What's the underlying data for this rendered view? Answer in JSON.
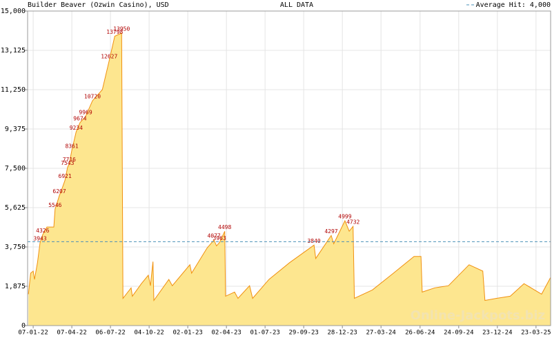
{
  "chart_data": {
    "type": "area",
    "title": "Builder Beaver (Ozwin Casino), USD",
    "subtitle": "ALL DATA",
    "watermark": "Online-Jackpots.biz",
    "average": {
      "label": "Average Hit: 4,000",
      "value": 4000,
      "color": "#4a90b8"
    },
    "color": "#f0900f",
    "fill": "#fde68f",
    "label_color": "#b00000",
    "grid": true,
    "xlim": [
      "2021-12-25",
      "2025-04-26"
    ],
    "xticks": [
      {
        "value": "2022-01-07",
        "label": "07-01-22"
      },
      {
        "value": "2022-04-07",
        "label": "07-04-22"
      },
      {
        "value": "2022-07-06",
        "label": "06-07-22"
      },
      {
        "value": "2022-10-04",
        "label": "04-10-22"
      },
      {
        "value": "2023-01-02",
        "label": "02-01-23"
      },
      {
        "value": "2023-04-02",
        "label": "02-04-23"
      },
      {
        "value": "2023-07-01",
        "label": "01-07-23"
      },
      {
        "value": "2023-09-29",
        "label": "29-09-23"
      },
      {
        "value": "2023-12-28",
        "label": "28-12-23"
      },
      {
        "value": "2024-03-27",
        "label": "27-03-24"
      },
      {
        "value": "2024-06-26",
        "label": "26-06-24"
      },
      {
        "value": "2024-09-24",
        "label": "24-09-24"
      },
      {
        "value": "2024-12-23",
        "label": "23-12-24"
      },
      {
        "value": "2025-03-23",
        "label": "23-03-25"
      }
    ],
    "ylim": [
      0,
      15000
    ],
    "yticks": [
      0,
      {
        "value": 1875,
        "label": "1,875"
      },
      {
        "value": 3750,
        "label": "3,750"
      },
      {
        "value": 5625,
        "label": "5,625"
      },
      {
        "value": 7500,
        "label": "7,500"
      },
      {
        "value": 9375,
        "label": "9,375"
      },
      {
        "value": 11250,
        "label": "11,250"
      },
      {
        "value": 13125,
        "label": "13,125"
      },
      {
        "value": 15000,
        "label": "15,000"
      }
    ],
    "x": [
      "2021-12-27",
      "2022-01-01",
      "2022-01-07",
      "2022-01-10",
      "2022-01-17",
      "2022-01-23",
      "2022-01-29",
      "2022-02-08",
      "2022-02-24",
      "2022-02-27",
      "2022-03-09",
      "2022-03-12",
      "2022-03-22",
      "2022-03-28",
      "2022-04-01",
      "2022-04-07",
      "2022-04-17",
      "2022-04-26",
      "2022-05-09",
      "2022-05-25",
      "2022-06-17",
      "2022-07-03",
      "2022-07-16",
      "2022-08-01",
      "2022-08-04",
      "2022-08-23",
      "2022-08-26",
      "2022-09-16",
      "2022-10-02",
      "2022-10-07",
      "2022-10-13",
      "2022-10-15",
      "2022-11-19",
      "2022-11-27",
      "2023-01-07",
      "2023-01-11",
      "2023-02-16",
      "2023-03-04",
      "2023-03-10",
      "2023-03-17",
      "2023-03-29",
      "2023-03-31",
      "2023-04-21",
      "2023-04-29",
      "2023-05-26",
      "2023-06-02",
      "2023-07-10",
      "2023-08-27",
      "2023-10-23",
      "2023-10-27",
      "2023-12-02",
      "2023-12-08",
      "2024-01-03",
      "2024-01-13",
      "2024-01-22",
      "2024-01-25",
      "2024-03-07",
      "2024-04-25",
      "2024-06-12",
      "2024-06-28",
      "2024-07-01",
      "2024-07-30",
      "2024-08-31",
      "2024-10-18",
      "2024-11-19",
      "2024-11-24",
      "2024-12-21",
      "2025-01-22",
      "2025-02-23",
      "2025-04-05",
      "2025-04-26"
    ],
    "values": [
      1500,
      2500,
      2600,
      2200,
      3000,
      3943,
      4326,
      4700,
      4700,
      5546,
      6207,
      6350,
      6921,
      7543,
      7716,
      8361,
      9234,
      9674,
      9969,
      10720,
      11250,
      12627,
      13798,
      13950,
      1300,
      1800,
      1400,
      2000,
      2400,
      1900,
      3050,
      1200,
      2200,
      1900,
      2900,
      2500,
      3700,
      4077,
      3800,
      3963,
      4498,
      1400,
      1600,
      1300,
      1900,
      1300,
      2200,
      3000,
      3840,
      3200,
      4297,
      3900,
      4999,
      4500,
      4732,
      1300,
      1700,
      2500,
      3300,
      3300,
      1600,
      1800,
      1900,
      2900,
      2600,
      1200,
      1300,
      1400,
      2000,
      1500,
      2300
    ],
    "value_labels": [
      null,
      null,
      null,
      null,
      null,
      "3943",
      "4326",
      null,
      null,
      "5546",
      "6207",
      null,
      "6921",
      "7543",
      "7716",
      "8361",
      "9234",
      "9674",
      "9969",
      "10720",
      null,
      "12627",
      "13798",
      "13950",
      null,
      null,
      null,
      null,
      null,
      null,
      null,
      null,
      null,
      null,
      null,
      null,
      null,
      "4077",
      null,
      "3963",
      "4498",
      null,
      null,
      null,
      null,
      null,
      null,
      null,
      "3840",
      null,
      "4297",
      null,
      "4999",
      null,
      "4732",
      null,
      null,
      null,
      null,
      null,
      null,
      null,
      null,
      null,
      null,
      null,
      null,
      null,
      null,
      null,
      null
    ]
  }
}
